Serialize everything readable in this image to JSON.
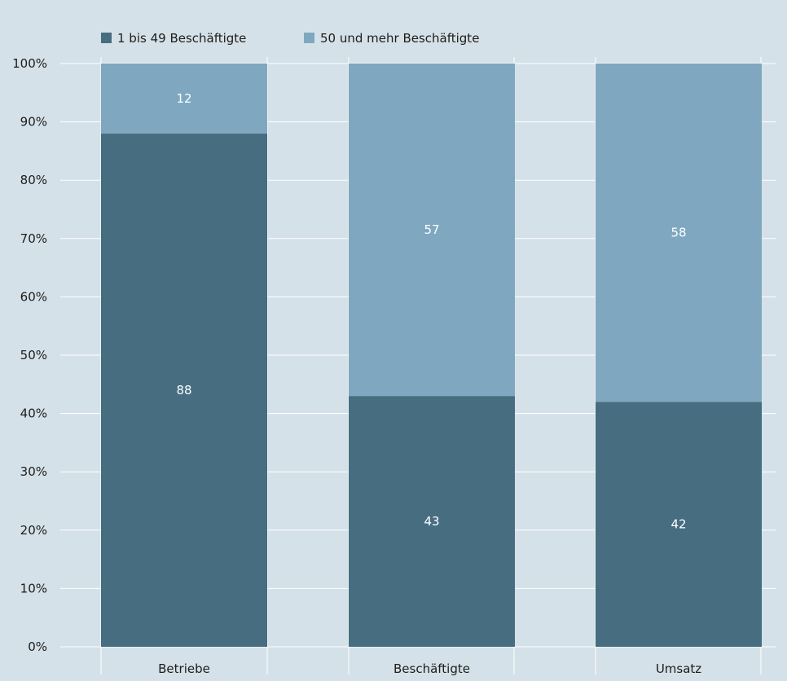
{
  "chart_data": {
    "type": "bar",
    "stacked": true,
    "normalized": true,
    "categories": [
      "Betriebe",
      "Beschäftigte",
      "Umsatz"
    ],
    "series": [
      {
        "name": "1 bis 49 Beschäftigte",
        "values": [
          88,
          43,
          42
        ],
        "color": "#466d80"
      },
      {
        "name": "50 und mehr Beschäftigte",
        "values": [
          12,
          57,
          58
        ],
        "color": "#7fa8c0"
      }
    ],
    "data_labels": [
      [
        "88",
        "43",
        "42"
      ],
      [
        "12",
        "57",
        "58"
      ]
    ],
    "y_ticks": [
      "0%",
      "10%",
      "20%",
      "30%",
      "40%",
      "50%",
      "60%",
      "70%",
      "80%",
      "90%",
      "100%"
    ],
    "ylim": [
      0,
      100
    ],
    "grid": true,
    "legend_position": "top-left",
    "colors": {
      "background": "#d5e1e8",
      "gridline": "#ffffff",
      "text": "#1d1d1b",
      "label_on_bar": "#ffffff"
    }
  }
}
